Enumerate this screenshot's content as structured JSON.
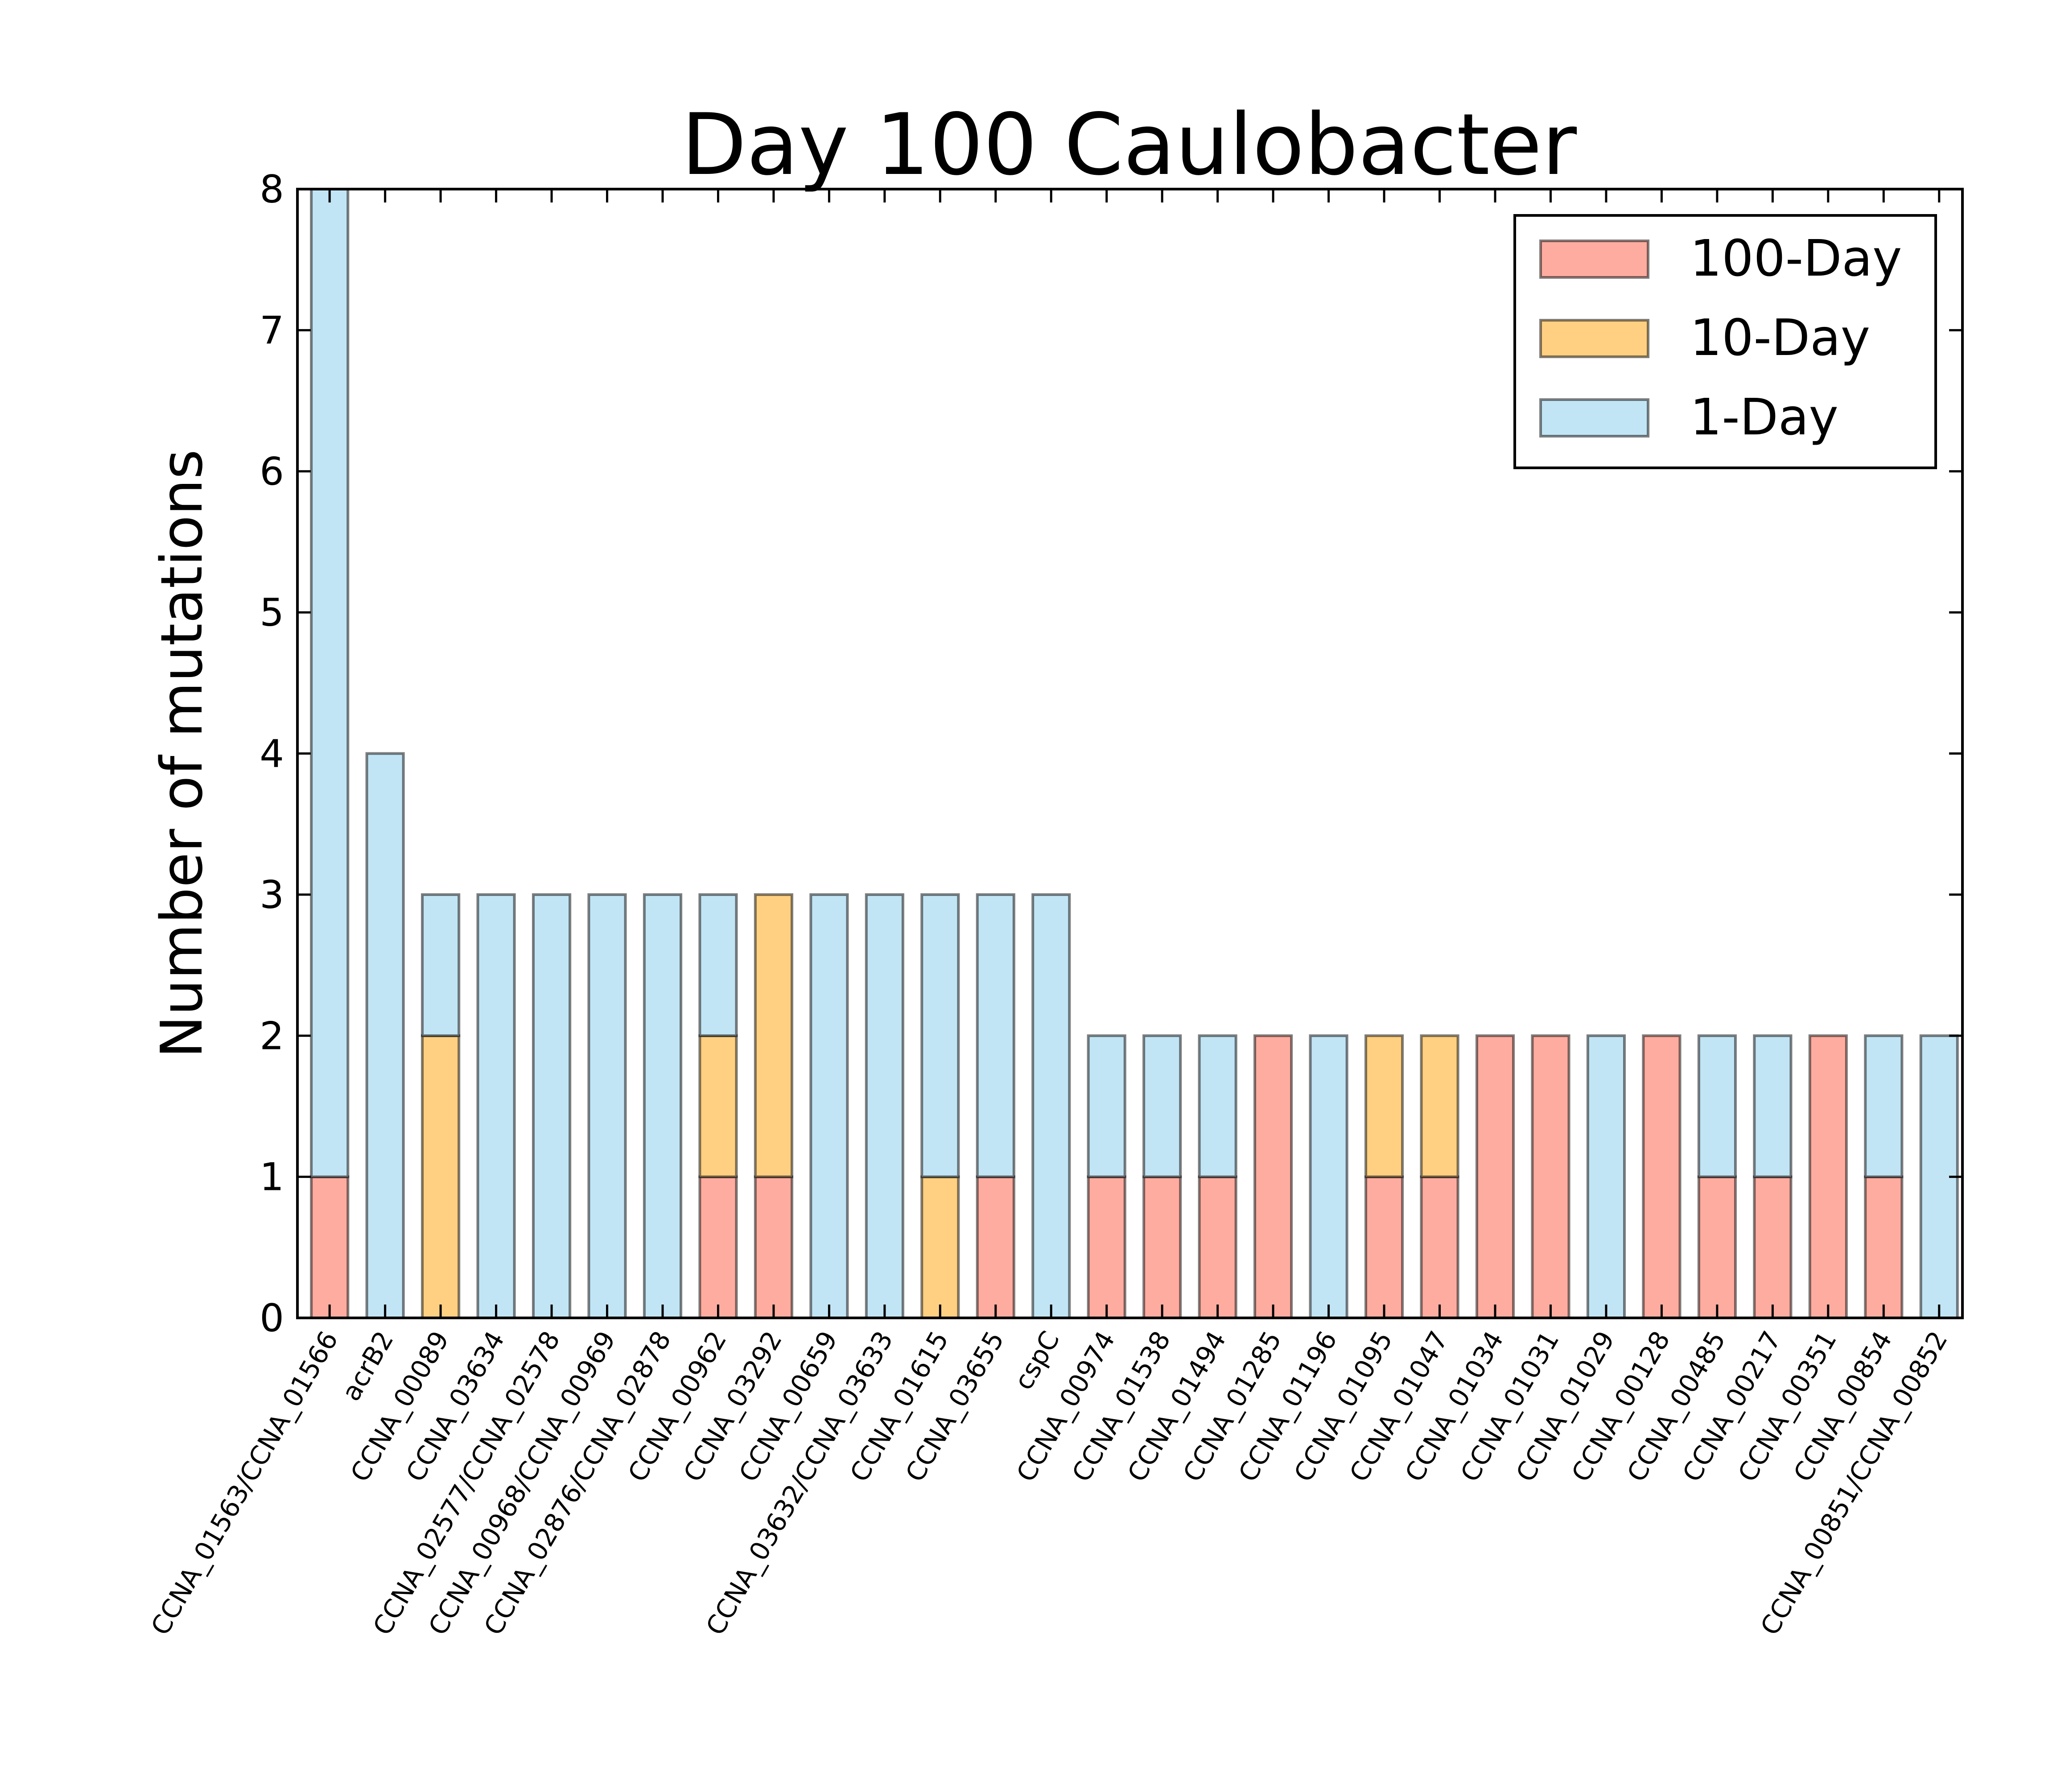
{
  "chart_data": {
    "type": "bar",
    "stacked": true,
    "title": "Day 100 Caulobacter",
    "xlabel": "",
    "ylabel": "Number of mutations",
    "ylim": [
      0,
      8
    ],
    "yticks": [
      "0",
      "1",
      "2",
      "3",
      "4",
      "5",
      "6",
      "7",
      "8"
    ],
    "grid": false,
    "legend_position": "top-right",
    "categories": [
      "CCNA_01563/CCNA_01566",
      "acrB2",
      "CCNA_00089",
      "CCNA_03634",
      "CCNA_02577/CCNA_02578",
      "CCNA_00968/CCNA_00969",
      "CCNA_02876/CCNA_02878",
      "CCNA_00962",
      "CCNA_03292",
      "CCNA_00659",
      "CCNA_03632/CCNA_03633",
      "CCNA_01615",
      "CCNA_03655",
      "cspC",
      "CCNA_00974",
      "CCNA_01538",
      "CCNA_01494",
      "CCNA_01285",
      "CCNA_01196",
      "CCNA_01095",
      "CCNA_01047",
      "CCNA_01034",
      "CCNA_01031",
      "CCNA_01029",
      "CCNA_00128",
      "CCNA_00485",
      "CCNA_00217",
      "CCNA_00351",
      "CCNA_00854",
      "CCNA_00851/CCNA_00852"
    ],
    "series": [
      {
        "name": "100-Day",
        "color": "#ffaca0",
        "values": [
          1,
          0,
          0,
          0,
          0,
          0,
          0,
          1,
          1,
          0,
          0,
          0,
          1,
          0,
          1,
          1,
          1,
          2,
          0,
          1,
          1,
          2,
          2,
          0,
          2,
          1,
          1,
          2,
          1,
          0
        ]
      },
      {
        "name": "10-Day",
        "color": "#ffd081",
        "values": [
          0,
          0,
          2,
          0,
          0,
          0,
          0,
          1,
          2,
          0,
          0,
          1,
          0,
          0,
          0,
          0,
          0,
          0,
          0,
          1,
          1,
          0,
          0,
          0,
          0,
          0,
          0,
          0,
          0,
          0
        ]
      },
      {
        "name": "1-Day",
        "color": "#c2e5f5",
        "values": [
          7,
          4,
          1,
          3,
          3,
          3,
          3,
          1,
          0,
          3,
          3,
          2,
          2,
          3,
          1,
          1,
          1,
          0,
          2,
          0,
          0,
          0,
          0,
          2,
          0,
          1,
          1,
          0,
          1,
          2
        ]
      }
    ]
  }
}
